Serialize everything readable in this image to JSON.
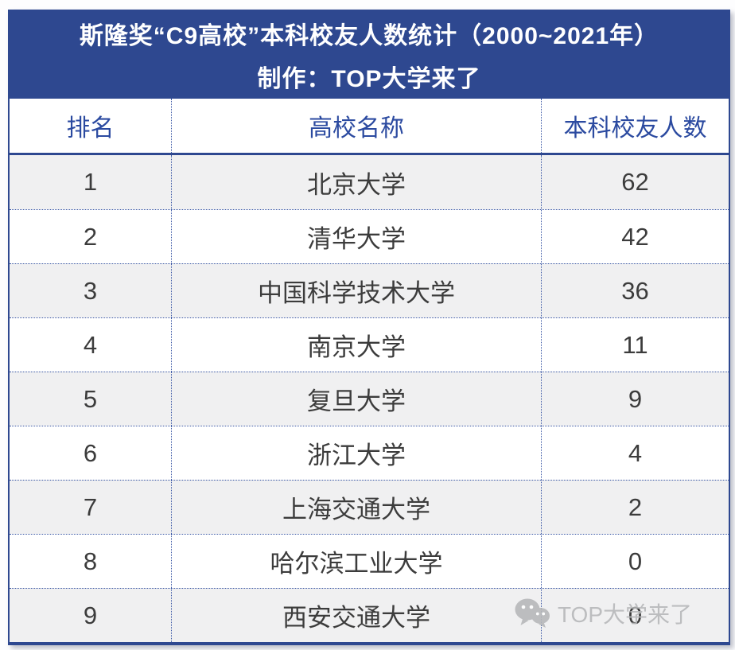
{
  "header": {
    "title_line1": "斯隆奖“C9高校”本科校友人数统计（2000~2021年）",
    "title_line2": "制作：TOP大学来了"
  },
  "table": {
    "columns": [
      "排名",
      "高校名称",
      "本科校友人数"
    ],
    "rows": [
      {
        "rank": "1",
        "name": "北京大学",
        "count": "62"
      },
      {
        "rank": "2",
        "name": "清华大学",
        "count": "42"
      },
      {
        "rank": "3",
        "name": "中国科学技术大学",
        "count": "36"
      },
      {
        "rank": "4",
        "name": "南京大学",
        "count": "11"
      },
      {
        "rank": "5",
        "name": "复旦大学",
        "count": "9"
      },
      {
        "rank": "6",
        "name": "浙江大学",
        "count": "4"
      },
      {
        "rank": "7",
        "name": "上海交通大学",
        "count": "2"
      },
      {
        "rank": "8",
        "name": "哈尔滨工业大学",
        "count": "0"
      },
      {
        "rank": "9",
        "name": "西安交通大学",
        "count": "0"
      }
    ]
  },
  "watermark": {
    "icon": "wechat-icon",
    "text": "TOP大学来了"
  },
  "colors": {
    "band_blue": "#2e4890",
    "header_text_blue": "#2b4aa0",
    "dotted_blue": "#3a57a5",
    "cell_text": "#3c3c3c",
    "alt_row_bg": "#f0f0f1",
    "watermark_gray": "#b7b8ba"
  },
  "chart_data": {
    "type": "table",
    "title": "斯隆奖“C9高校”本科校友人数统计（2000~2021年）",
    "subtitle": "制作：TOP大学来了",
    "columns": [
      "排名",
      "高校名称",
      "本科校友人数"
    ],
    "rows": [
      [
        1,
        "北京大学",
        62
      ],
      [
        2,
        "清华大学",
        42
      ],
      [
        3,
        "中国科学技术大学",
        36
      ],
      [
        4,
        "南京大学",
        11
      ],
      [
        5,
        "复旦大学",
        9
      ],
      [
        6,
        "浙江大学",
        4
      ],
      [
        7,
        "上海交通大学",
        2
      ],
      [
        8,
        "哈尔滨工业大学",
        0
      ],
      [
        9,
        "西安交通大学",
        0
      ]
    ]
  }
}
